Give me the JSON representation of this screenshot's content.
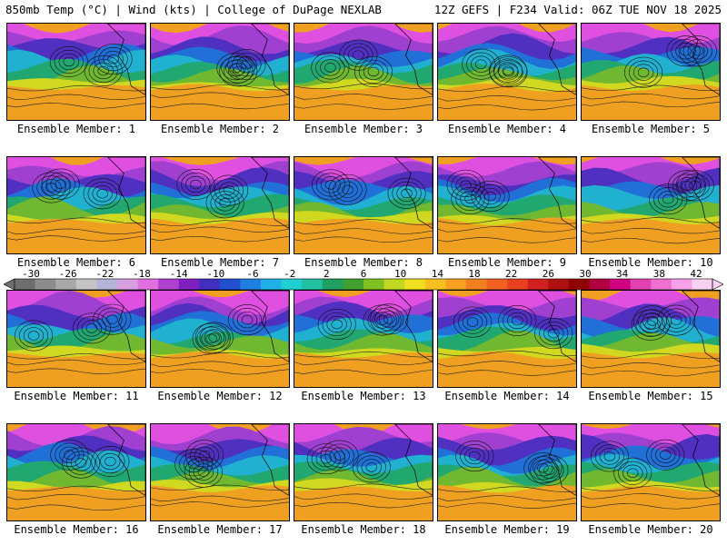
{
  "header": {
    "left": "850mb Temp (°C) | Wind (kts) | College of DuPage NEXLAB",
    "right": "12Z GEFS | F234 Valid: 06Z TUE NOV 18 2025"
  },
  "members": [
    {
      "label": "Ensemble Member: 1"
    },
    {
      "label": "Ensemble Member: 2"
    },
    {
      "label": "Ensemble Member: 3"
    },
    {
      "label": "Ensemble Member: 4"
    },
    {
      "label": "Ensemble Member: 5"
    },
    {
      "label": "Ensemble Member: 6"
    },
    {
      "label": "Ensemble Member: 7"
    },
    {
      "label": "Ensemble Member: 8"
    },
    {
      "label": "Ensemble Member: 9"
    },
    {
      "label": "Ensemble Member: 10"
    },
    {
      "label": "Ensemble Member: 11"
    },
    {
      "label": "Ensemble Member: 12"
    },
    {
      "label": "Ensemble Member: 13"
    },
    {
      "label": "Ensemble Member: 14"
    },
    {
      "label": "Ensemble Member: 15"
    },
    {
      "label": "Ensemble Member: 16"
    },
    {
      "label": "Ensemble Member: 17"
    },
    {
      "label": "Ensemble Member: 18"
    },
    {
      "label": "Ensemble Member: 19"
    },
    {
      "label": "Ensemble Member: 20"
    }
  ],
  "colorbar": {
    "ticks": [
      "-30",
      "-26",
      "-22",
      "-18",
      "-14",
      "-10",
      "-6",
      "-2",
      "2",
      "6",
      "10",
      "14",
      "18",
      "22",
      "26",
      "30",
      "34",
      "38",
      "42"
    ],
    "colors": [
      "#6e6e6e",
      "#8c8c8c",
      "#a8a8a8",
      "#c4c4c4",
      "#b4b4d8",
      "#d8a0e0",
      "#e070e0",
      "#b040d0",
      "#8020c0",
      "#4030c0",
      "#2050d0",
      "#2080e0",
      "#20b0e8",
      "#20d0d0",
      "#20c0a0",
      "#20a060",
      "#40a030",
      "#80c020",
      "#c0d820",
      "#f0e020",
      "#f8c020",
      "#f8a020",
      "#f08020",
      "#f06020",
      "#e84020",
      "#d02020",
      "#b01010",
      "#900000",
      "#b00040",
      "#d00080",
      "#e040b0",
      "#f070d0",
      "#f8a0e8",
      "#f8d0f0"
    ]
  }
}
